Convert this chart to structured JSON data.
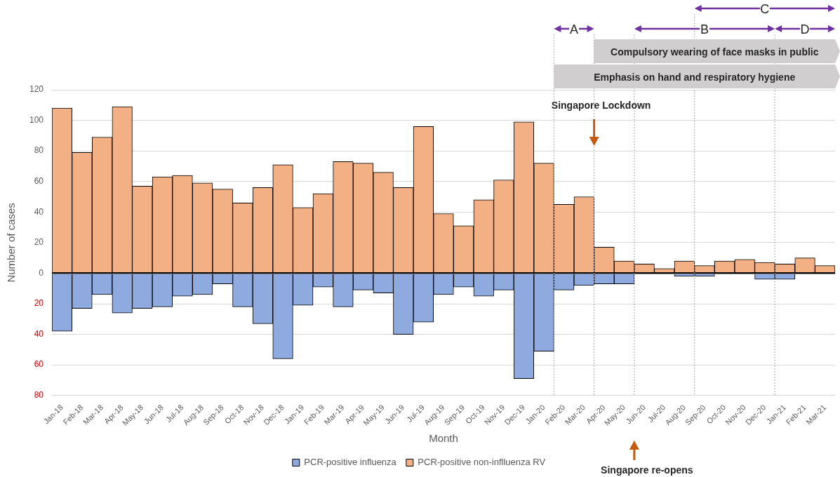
{
  "chart_data": {
    "type": "bar",
    "xlabel": "Month",
    "ylabel": "Number of cases",
    "categories": [
      "Jan-18",
      "Feb-18",
      "Mar-18",
      "Apr-18",
      "May-18",
      "Jun-18",
      "Jul-18",
      "Aug-18",
      "Sep-18",
      "Oct-18",
      "Nov-18",
      "Dec-18",
      "Jan-19",
      "Feb-19",
      "Mar-19",
      "Apr-19",
      "May-19",
      "Jun-19",
      "Jul-19",
      "Aug-19",
      "Sep-19",
      "Oct-19",
      "Nov-19",
      "Dec-19",
      "Jan-20",
      "Feb-20",
      "Mar-20",
      "Apr-20",
      "May-20",
      "Jun-20",
      "Jul-20",
      "Aug-20",
      "Sep-20",
      "Oct-20",
      "Nov-20",
      "Dec-20",
      "Jan-21",
      "Feb-21",
      "Mar-21"
    ],
    "series": [
      {
        "name": "PCR-positive influenza",
        "color": "#8eaadf",
        "values": [
          -38,
          -23,
          -14,
          -26,
          -23,
          -22,
          -15,
          -14,
          -7,
          -22,
          -33,
          -56,
          -21,
          -9,
          -22,
          -11,
          -13,
          -40,
          -32,
          -14,
          -9,
          -15,
          -11,
          -69,
          -51,
          -11,
          -8,
          -7,
          -7,
          0,
          0,
          -2,
          -2,
          0,
          0,
          -4,
          -4,
          0,
          0
        ]
      },
      {
        "name": "PCR-positive non-inflluenza RV",
        "color": "#f2b084",
        "values": [
          108,
          79,
          89,
          109,
          57,
          63,
          64,
          59,
          55,
          46,
          56,
          71,
          43,
          52,
          73,
          72,
          66,
          56,
          96,
          39,
          31,
          48,
          61,
          99,
          72,
          45,
          50,
          17,
          8,
          6,
          3,
          8,
          5,
          8,
          9,
          7,
          6,
          10,
          5
        ]
      }
    ],
    "stacked": true,
    "ylim": [
      -80,
      120
    ],
    "yticks": [
      {
        "value": -80,
        "label": "80"
      },
      {
        "value": -60,
        "label": "60"
      },
      {
        "value": -40,
        "label": "40"
      },
      {
        "value": -20,
        "label": "20"
      },
      0,
      20,
      40,
      60,
      80,
      100,
      120
    ],
    "grid": "y",
    "legend": "bottom",
    "annotations": [
      "C",
      "A",
      "B",
      "D",
      "Compulsory wearing of face masks in public",
      "Emphasis on hand and respiratory hygiene",
      "Singapore Lockdown",
      "Singapore re-opens"
    ]
  }
}
